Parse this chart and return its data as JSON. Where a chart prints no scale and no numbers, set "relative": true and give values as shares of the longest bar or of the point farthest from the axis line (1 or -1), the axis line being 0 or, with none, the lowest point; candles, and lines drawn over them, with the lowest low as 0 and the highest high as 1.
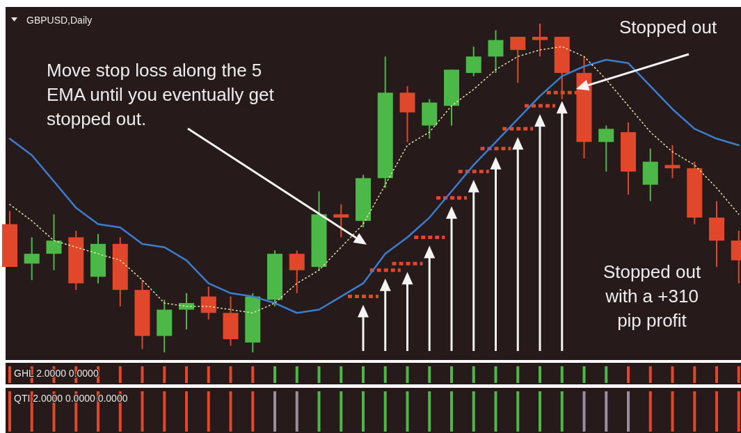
{
  "chart_data": [
    {
      "type": "candlestick",
      "title": "GBPUSD,Daily",
      "relative": true,
      "categories": [
        null,
        null,
        null,
        null,
        null,
        null,
        null,
        null,
        null,
        null,
        null,
        null,
        null,
        null,
        null,
        null,
        null,
        null,
        null,
        null,
        null,
        null,
        null,
        null,
        null,
        null,
        null,
        null,
        null,
        null,
        null,
        null,
        null,
        null
      ],
      "ohlc": [
        [
          0.39,
          0.43,
          0.26,
          0.26
        ],
        [
          0.27,
          0.35,
          0.22,
          0.3
        ],
        [
          0.3,
          0.42,
          0.25,
          0.34
        ],
        [
          0.35,
          0.37,
          0.19,
          0.21
        ],
        [
          0.23,
          0.36,
          0.21,
          0.33
        ],
        [
          0.33,
          0.35,
          0.14,
          0.19
        ],
        [
          0.19,
          0.22,
          0.01,
          0.05
        ],
        [
          0.05,
          0.16,
          0,
          0.13
        ],
        [
          0.13,
          0.18,
          0.07,
          0.15
        ],
        [
          0.17,
          0.2,
          0.1,
          0.12
        ],
        [
          0.12,
          0.17,
          0.02,
          0.04
        ],
        [
          0.03,
          0.18,
          0,
          0.17
        ],
        [
          0.16,
          0.31,
          0.14,
          0.3
        ],
        [
          0.3,
          0.31,
          0.18,
          0.25
        ],
        [
          0.26,
          0.49,
          0.25,
          0.42
        ],
        [
          0.42,
          0.45,
          0.35,
          0.41
        ],
        [
          0.4,
          0.54,
          0.38,
          0.53
        ],
        [
          0.53,
          0.9,
          0.5,
          0.79
        ],
        [
          0.79,
          0.81,
          0.64,
          0.73
        ],
        [
          0.69,
          0.77,
          0.65,
          0.76
        ],
        [
          0.75,
          0.86,
          0.69,
          0.86
        ],
        [
          0.85,
          0.93,
          0.84,
          0.9
        ],
        [
          0.9,
          0.98,
          0.85,
          0.95
        ],
        [
          0.96,
          0.96,
          0.82,
          0.92
        ],
        [
          0.96,
          1,
          0.9,
          0.95
        ],
        [
          0.96,
          0.96,
          0.77,
          0.85
        ],
        [
          0.85,
          0.9,
          0.59,
          0.64
        ],
        [
          0.64,
          0.69,
          0.55,
          0.68
        ],
        [
          0.67,
          0.7,
          0.48,
          0.55
        ],
        [
          0.51,
          0.62,
          0.46,
          0.58
        ],
        [
          0.57,
          0.63,
          0.53,
          0.56
        ],
        [
          0.56,
          0.58,
          0.39,
          0.41
        ],
        [
          0.41,
          0.46,
          0.26,
          0.34
        ],
        [
          0.34,
          0.37,
          0.21,
          0.28
        ]
      ],
      "colors": [
        "#e0472b",
        "#4cb848",
        "#4cb848",
        "#e0472b",
        "#4cb848",
        "#e0472b",
        "#e0472b",
        "#4cb848",
        "#4cb848",
        "#e0472b",
        "#e0472b",
        "#4cb848",
        "#4cb848",
        "#e0472b",
        "#4cb848",
        "#e0472b",
        "#4cb848",
        "#4cb848",
        "#e0472b",
        "#4cb848",
        "#4cb848",
        "#4cb848",
        "#4cb848",
        "#e0472b",
        "#e0472b",
        "#e0472b",
        "#e0472b",
        "#4cb848",
        "#e0472b",
        "#4cb848",
        "#e0472b",
        "#e0472b",
        "#e0472b",
        "#e0472b"
      ],
      "series": [
        {
          "type": "line",
          "color": "#3b7dd0",
          "line_style": "solid",
          "values": [
            0.65,
            0.6,
            0.52,
            0.44,
            0.39,
            0.38,
            0.33,
            0.32,
            0.28,
            0.21,
            0.18,
            0.17,
            0.15,
            0.12,
            0.13,
            0.17,
            0.21,
            0.3,
            0.35,
            0.41,
            0.49,
            0.57,
            0.64,
            0.71,
            0.78,
            0.84,
            0.87,
            0.89,
            0.88,
            0.81,
            0.74,
            0.68,
            0.65,
            0.63
          ]
        },
        {
          "type": "line",
          "color": "#ece4a8",
          "line_style": "dotted",
          "values": [
            0.45,
            0.4,
            0.34,
            0.32,
            0.3,
            0.28,
            0.22,
            0.15,
            0.14,
            0.14,
            0.13,
            0.12,
            0.15,
            0.21,
            0.25,
            0.32,
            0.39,
            0.51,
            0.63,
            0.67,
            0.75,
            0.8,
            0.86,
            0.9,
            0.92,
            0.93,
            0.9,
            0.83,
            0.75,
            0.67,
            0.61,
            0.57,
            0.5,
            0.42
          ]
        }
      ],
      "annotations": [
        "Move stop loss along the 5\nEMA until you eventually get\nstopped out.",
        "Stopped out",
        "Stopped out\nwith a +310\npip profit"
      ]
    },
    {
      "type": "bar",
      "title": "GHL 2.0000 0.0000",
      "relative": true,
      "categories": [
        null,
        null,
        null,
        null,
        null,
        null,
        null,
        null,
        null,
        null,
        null,
        null,
        null,
        null,
        null,
        null,
        null,
        null,
        null,
        null,
        null,
        null,
        null,
        null,
        null,
        null,
        null,
        null,
        null,
        null,
        null,
        null,
        null,
        null
      ],
      "values": [
        1,
        1,
        1,
        1,
        1,
        1,
        1,
        1,
        1,
        1,
        1,
        1,
        1,
        1,
        1,
        1,
        1,
        1,
        1,
        1,
        1,
        1,
        1,
        1,
        1,
        1,
        1,
        1,
        1,
        1,
        1,
        1,
        1,
        1
      ],
      "colors": [
        "#e0472b",
        "#e0472b",
        "#e0472b",
        "#e0472b",
        "#e0472b",
        "#e0472b",
        "#e0472b",
        "#e0472b",
        "#e0472b",
        "#e0472b",
        "#e0472b",
        "#e0472b",
        "#4cb848",
        "#4cb848",
        "#4cb848",
        "#4cb848",
        "#4cb848",
        "#4cb848",
        "#4cb848",
        "#4cb848",
        "#4cb848",
        "#4cb848",
        "#4cb848",
        "#4cb848",
        "#4cb848",
        "#4cb848",
        "#4cb848",
        "#4cb848",
        "#e0472b",
        "#e0472b",
        "#e0472b",
        "#e0472b",
        "#e0472b",
        "#e0472b"
      ]
    },
    {
      "type": "bar",
      "title": "QTI 2.0000 0.0000 0.0000",
      "relative": true,
      "categories": [
        null,
        null,
        null,
        null,
        null,
        null,
        null,
        null,
        null,
        null,
        null,
        null,
        null,
        null,
        null,
        null,
        null,
        null,
        null,
        null,
        null,
        null,
        null,
        null,
        null,
        null,
        null,
        null,
        null,
        null,
        null,
        null,
        null,
        null
      ],
      "values": [
        1,
        1,
        1,
        1,
        1,
        1,
        1,
        1,
        1,
        1,
        1,
        1,
        1,
        1,
        1,
        1,
        1,
        1,
        1,
        1,
        1,
        1,
        1,
        1,
        1,
        1,
        1,
        1,
        1,
        1,
        1,
        1,
        1,
        1
      ],
      "colors": [
        "#e0472b",
        "#e0472b",
        "#e0472b",
        "#e0472b",
        "#e0472b",
        "#e0472b",
        "#e0472b",
        "#e0472b",
        "#e0472b",
        "#e0472b",
        "#e0472b",
        "#e0472b",
        "#9a8e9c",
        "#9a8e9c",
        "#4cb848",
        "#4cb848",
        "#4cb848",
        "#4cb848",
        "#4cb848",
        "#4cb848",
        "#4cb848",
        "#4cb848",
        "#4cb848",
        "#4cb848",
        "#4cb848",
        "#4cb848",
        "#9a8e9c",
        "#9a8e9c",
        "#9a8e9c",
        "#e0472b",
        "#e0472b",
        "#e0472b",
        "#e0472b",
        "#e0472b"
      ]
    }
  ]
}
